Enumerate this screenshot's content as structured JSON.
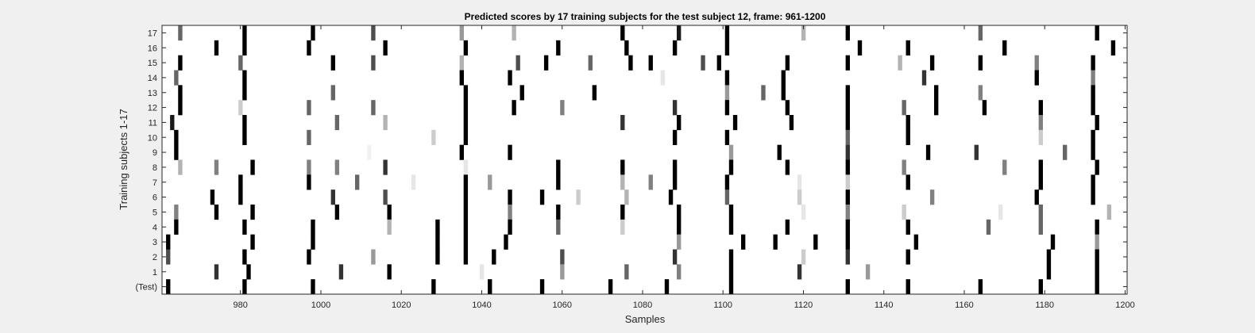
{
  "chart_data": {
    "type": "heatmap",
    "title": "Predicted scores by 17 training subjects for the test subject 12, frame: 961-1200",
    "xlabel": "Samples",
    "ylabel": "Training subjects 1-17",
    "xlim": [
      961,
      1200
    ],
    "x_ticks": [
      980,
      1000,
      1020,
      1040,
      1060,
      1080,
      1100,
      1120,
      1140,
      1160,
      1180,
      1200
    ],
    "y_tick_labels": [
      "(Test)",
      "1",
      "2",
      "3",
      "4",
      "5",
      "6",
      "7",
      "8",
      "9",
      "10",
      "11",
      "12",
      "13",
      "14",
      "15",
      "16",
      "17"
    ],
    "colormap": "gray (white = 0, black = 1)",
    "rows": [
      {
        "label": "17",
        "events": [
          [
            965,
            0.6
          ],
          [
            981,
            1.0
          ],
          [
            998,
            1.0
          ],
          [
            1013,
            0.7
          ],
          [
            1035,
            0.4
          ],
          [
            1048,
            0.3
          ],
          [
            1075,
            1.0
          ],
          [
            1089,
            0.9
          ],
          [
            1101,
            1.0
          ],
          [
            1120,
            0.3
          ],
          [
            1131,
            1.0
          ],
          [
            1164,
            0.6
          ],
          [
            1193,
            1.0
          ]
        ]
      },
      {
        "label": "16",
        "events": [
          [
            974,
            1.0
          ],
          [
            981,
            1.0
          ],
          [
            997,
            1.0
          ],
          [
            1016,
            1.0
          ],
          [
            1036,
            1.0
          ],
          [
            1059,
            1.0
          ],
          [
            1076,
            1.0
          ],
          [
            1088,
            1.0
          ],
          [
            1101,
            1.0
          ],
          [
            1134,
            1.0
          ],
          [
            1146,
            1.0
          ],
          [
            1170,
            1.0
          ],
          [
            1197,
            1.0
          ]
        ]
      },
      {
        "label": "15",
        "events": [
          [
            965,
            1.0
          ],
          [
            980,
            0.6
          ],
          [
            1003,
            1.0
          ],
          [
            1013,
            0.7
          ],
          [
            1035,
            0.3
          ],
          [
            1049,
            0.7
          ],
          [
            1056,
            1.0
          ],
          [
            1067,
            0.6
          ],
          [
            1077,
            1.0
          ],
          [
            1082,
            1.0
          ],
          [
            1095,
            0.7
          ],
          [
            1099,
            1.0
          ],
          [
            1116,
            1.0
          ],
          [
            1131,
            1.0
          ],
          [
            1144,
            0.3
          ],
          [
            1152,
            1.0
          ],
          [
            1164,
            1.0
          ],
          [
            1178,
            0.5
          ],
          [
            1192,
            1.0
          ]
        ]
      },
      {
        "label": "14",
        "events": [
          [
            964,
            0.6
          ],
          [
            981,
            1.0
          ],
          [
            1035,
            1.0
          ],
          [
            1047,
            1.0
          ],
          [
            1085,
            0.1
          ],
          [
            1101,
            1.0
          ],
          [
            1115,
            1.0
          ],
          [
            1150,
            0.8
          ],
          [
            1178,
            1.0
          ],
          [
            1192,
            0.5
          ]
        ]
      },
      {
        "label": "13",
        "events": [
          [
            965,
            1.0
          ],
          [
            981,
            1.0
          ],
          [
            1003,
            0.6
          ],
          [
            1036,
            1.0
          ],
          [
            1050,
            1.0
          ],
          [
            1068,
            1.0
          ],
          [
            1101,
            0.4
          ],
          [
            1110,
            0.6
          ],
          [
            1115,
            1.0
          ],
          [
            1131,
            1.0
          ],
          [
            1153,
            1.0
          ],
          [
            1164,
            0.5
          ],
          [
            1192,
            1.0
          ]
        ]
      },
      {
        "label": "12",
        "events": [
          [
            965,
            1.0
          ],
          [
            980,
            0.2
          ],
          [
            997,
            0.6
          ],
          [
            1013,
            0.6
          ],
          [
            1036,
            1.0
          ],
          [
            1048,
            1.0
          ],
          [
            1060,
            0.5
          ],
          [
            1088,
            0.8
          ],
          [
            1101,
            1.0
          ],
          [
            1116,
            1.0
          ],
          [
            1131,
            1.0
          ],
          [
            1145,
            0.6
          ],
          [
            1153,
            1.0
          ],
          [
            1165,
            1.0
          ],
          [
            1179,
            1.0
          ],
          [
            1192,
            1.0
          ]
        ]
      },
      {
        "label": "11",
        "events": [
          [
            963,
            0.9
          ],
          [
            981,
            1.0
          ],
          [
            1004,
            0.6
          ],
          [
            1016,
            0.3
          ],
          [
            1036,
            1.0
          ],
          [
            1075,
            0.8
          ],
          [
            1089,
            1.0
          ],
          [
            1103,
            1.0
          ],
          [
            1117,
            1.0
          ],
          [
            1131,
            1.0
          ],
          [
            1146,
            1.0
          ],
          [
            1179,
            0.5
          ],
          [
            1193,
            1.0
          ]
        ]
      },
      {
        "label": "10",
        "events": [
          [
            964,
            1.0
          ],
          [
            981,
            1.0
          ],
          [
            997,
            0.6
          ],
          [
            1028,
            0.2
          ],
          [
            1036,
            1.0
          ],
          [
            1088,
            1.0
          ],
          [
            1101,
            1.0
          ],
          [
            1131,
            0.6
          ],
          [
            1146,
            1.0
          ],
          [
            1179,
            0.2
          ],
          [
            1192,
            1.0
          ]
        ]
      },
      {
        "label": "9",
        "events": [
          [
            964,
            1.0
          ],
          [
            1012,
            0.05
          ],
          [
            1035,
            1.0
          ],
          [
            1047,
            1.0
          ],
          [
            1102,
            0.4
          ],
          [
            1114,
            1.0
          ],
          [
            1131,
            0.8
          ],
          [
            1151,
            1.0
          ],
          [
            1163,
            0.8
          ],
          [
            1185,
            0.6
          ],
          [
            1192,
            1.0
          ]
        ]
      },
      {
        "label": "8",
        "events": [
          [
            965,
            0.3
          ],
          [
            974,
            0.5
          ],
          [
            983,
            1.0
          ],
          [
            997,
            0.5
          ],
          [
            1004,
            0.5
          ],
          [
            1016,
            0.8
          ],
          [
            1036,
            0.1
          ],
          [
            1059,
            1.0
          ],
          [
            1075,
            1.0
          ],
          [
            1088,
            1.0
          ],
          [
            1102,
            1.0
          ],
          [
            1116,
            1.0
          ],
          [
            1131,
            1.0
          ],
          [
            1145,
            0.5
          ],
          [
            1170,
            0.5
          ],
          [
            1179,
            1.0
          ],
          [
            1193,
            1.0
          ]
        ]
      },
      {
        "label": "7",
        "events": [
          [
            980,
            1.0
          ],
          [
            997,
            1.0
          ],
          [
            1009,
            0.6
          ],
          [
            1023,
            0.1
          ],
          [
            1036,
            1.0
          ],
          [
            1042,
            0.4
          ],
          [
            1059,
            1.0
          ],
          [
            1075,
            0.3
          ],
          [
            1082,
            0.5
          ],
          [
            1088,
            1.0
          ],
          [
            1101,
            1.0
          ],
          [
            1119,
            0.1
          ],
          [
            1131,
            0.2
          ],
          [
            1146,
            1.0
          ],
          [
            1179,
            1.0
          ],
          [
            1192,
            1.0
          ]
        ]
      },
      {
        "label": "6",
        "events": [
          [
            973,
            1.0
          ],
          [
            980,
            1.0
          ],
          [
            1003,
            0.8
          ],
          [
            1016,
            0.7
          ],
          [
            1036,
            1.0
          ],
          [
            1047,
            1.0
          ],
          [
            1055,
            1.0
          ],
          [
            1064,
            0.2
          ],
          [
            1076,
            0.3
          ],
          [
            1087,
            1.0
          ],
          [
            1101,
            0.6
          ],
          [
            1119,
            0.2
          ],
          [
            1131,
            1.0
          ],
          [
            1152,
            0.5
          ],
          [
            1178,
            1.0
          ],
          [
            1192,
            1.0
          ]
        ]
      },
      {
        "label": "5",
        "events": [
          [
            964,
            0.5
          ],
          [
            974,
            1.0
          ],
          [
            983,
            1.0
          ],
          [
            1004,
            1.0
          ],
          [
            1017,
            1.0
          ],
          [
            1036,
            1.0
          ],
          [
            1047,
            0.5
          ],
          [
            1059,
            1.0
          ],
          [
            1075,
            1.0
          ],
          [
            1089,
            1.0
          ],
          [
            1102,
            1.0
          ],
          [
            1120,
            0.1
          ],
          [
            1131,
            0.5
          ],
          [
            1145,
            0.2
          ],
          [
            1169,
            0.1
          ],
          [
            1179,
            0.6
          ],
          [
            1196,
            0.3
          ]
        ]
      },
      {
        "label": "4",
        "events": [
          [
            964,
            1.0
          ],
          [
            981,
            1.0
          ],
          [
            998,
            1.0
          ],
          [
            1017,
            0.3
          ],
          [
            1029,
            1.0
          ],
          [
            1036,
            1.0
          ],
          [
            1047,
            1.0
          ],
          [
            1059,
            0.6
          ],
          [
            1075,
            0.2
          ],
          [
            1089,
            1.0
          ],
          [
            1102,
            1.0
          ],
          [
            1116,
            1.0
          ],
          [
            1131,
            1.0
          ],
          [
            1146,
            1.0
          ],
          [
            1166,
            0.6
          ],
          [
            1179,
            0.6
          ],
          [
            1193,
            1.0
          ]
        ]
      },
      {
        "label": "3",
        "events": [
          [
            962,
            1.0
          ],
          [
            983,
            1.0
          ],
          [
            998,
            1.0
          ],
          [
            1029,
            1.0
          ],
          [
            1036,
            1.0
          ],
          [
            1046,
            1.0
          ],
          [
            1089,
            0.4
          ],
          [
            1105,
            1.0
          ],
          [
            1113,
            1.0
          ],
          [
            1123,
            1.0
          ],
          [
            1131,
            1.0
          ],
          [
            1148,
            1.0
          ],
          [
            1182,
            1.0
          ],
          [
            1193,
            0.4
          ]
        ]
      },
      {
        "label": "2",
        "events": [
          [
            962,
            0.7
          ],
          [
            981,
            1.0
          ],
          [
            997,
            1.0
          ],
          [
            1013,
            0.4
          ],
          [
            1029,
            1.0
          ],
          [
            1036,
            1.0
          ],
          [
            1043,
            1.0
          ],
          [
            1060,
            0.7
          ],
          [
            1088,
            0.8
          ],
          [
            1102,
            1.0
          ],
          [
            1120,
            0.2
          ],
          [
            1131,
            0.8
          ],
          [
            1146,
            1.0
          ],
          [
            1181,
            1.0
          ],
          [
            1193,
            1.0
          ]
        ]
      },
      {
        "label": "1",
        "events": [
          [
            974,
            0.8
          ],
          [
            982,
            1.0
          ],
          [
            1005,
            0.8
          ],
          [
            1017,
            1.0
          ],
          [
            1040,
            0.1
          ],
          [
            1060,
            0.4
          ],
          [
            1076,
            0.6
          ],
          [
            1089,
            0.5
          ],
          [
            1102,
            1.0
          ],
          [
            1119,
            0.8
          ],
          [
            1136,
            0.4
          ],
          [
            1181,
            1.0
          ],
          [
            1193,
            1.0
          ]
        ]
      },
      {
        "label": "(Test)",
        "events": [
          [
            962,
            1.0
          ],
          [
            981,
            1.0
          ],
          [
            998,
            1.0
          ],
          [
            1028,
            1.0
          ],
          [
            1042,
            1.0
          ],
          [
            1055,
            1.0
          ],
          [
            1072,
            1.0
          ],
          [
            1086,
            1.0
          ],
          [
            1102,
            1.0
          ],
          [
            1131,
            1.0
          ],
          [
            1146,
            1.0
          ],
          [
            1164,
            1.0
          ],
          [
            1179,
            1.0
          ],
          [
            1193,
            1.0
          ]
        ]
      }
    ]
  }
}
